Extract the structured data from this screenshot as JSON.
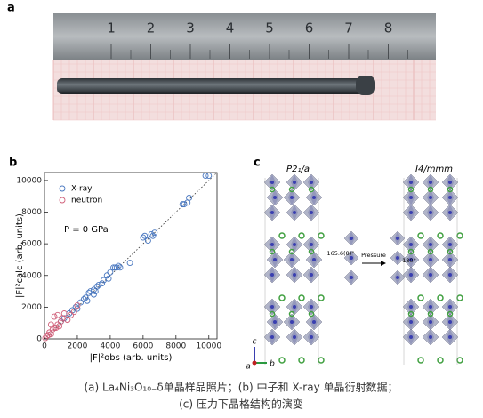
{
  "figure_labels": [
    "a",
    "b",
    "c"
  ],
  "photo": {
    "ruler_numbers": [
      "1",
      "2",
      "3",
      "4",
      "5",
      "6",
      "7",
      "8"
    ]
  },
  "chart_data": {
    "type": "scatter",
    "y_label": "|F|²calc (arb. units)",
    "x_label": "|F|²obs (arb. units)",
    "annotation": "P = 0 GPa",
    "xlim": [
      0,
      10500
    ],
    "ylim": [
      0,
      10500
    ],
    "xticks": [
      0,
      2000,
      4000,
      6000,
      8000,
      10000
    ],
    "yticks": [
      0,
      2000,
      4000,
      6000,
      8000,
      10000
    ],
    "series": [
      {
        "name": "X-ray",
        "color": "#4a78c0",
        "x": [
          1000,
          1200,
          1500,
          1700,
          1900,
          2000,
          2200,
          2400,
          2500,
          2600,
          2700,
          2800,
          3000,
          3000,
          3100,
          3200,
          3300,
          3500,
          3600,
          3800,
          3900,
          4000,
          4200,
          4300,
          4400,
          4500,
          4600,
          5200,
          6000,
          6100,
          6300,
          6500,
          6600,
          6700,
          8400,
          8500,
          8700,
          8800,
          9800,
          10000
        ],
        "values": [
          1100,
          1300,
          1600,
          1800,
          2000,
          1900,
          2300,
          2500,
          2600,
          2400,
          2900,
          3000,
          3100,
          2800,
          3000,
          3300,
          3400,
          3500,
          3700,
          4000,
          3800,
          4200,
          4500,
          4500,
          4500,
          4600,
          4500,
          4800,
          6400,
          6500,
          6200,
          6600,
          6500,
          6700,
          8500,
          8500,
          8600,
          8900,
          10300,
          10300
        ]
      },
      {
        "name": "neutron",
        "color": "#d0607a",
        "x": [
          50,
          150,
          250,
          300,
          400,
          400,
          500,
          600,
          600,
          700,
          800,
          800,
          900,
          1000,
          1100,
          1200,
          1400,
          1600,
          1800,
          2000
        ],
        "values": [
          50,
          200,
          250,
          400,
          300,
          900,
          600,
          700,
          1400,
          700,
          900,
          1500,
          800,
          1100,
          1300,
          1600,
          1200,
          1500,
          1700,
          2100
        ]
      }
    ]
  },
  "structure": {
    "left_title": "P2₁/a",
    "right_title": "I4/mmm",
    "angle_left": "165.6(8)°",
    "arrow_label": "Pressure",
    "angle_right": "180°",
    "axis_c": "c",
    "axis_a": "a",
    "axis_b": "b"
  },
  "caption": [
    "(a) La₄Ni₃O₁₀₋δ单晶样品照片；(b) 中子和 X-ray 单晶衍射数据；",
    "(c) 压力下晶格结构的演变"
  ]
}
